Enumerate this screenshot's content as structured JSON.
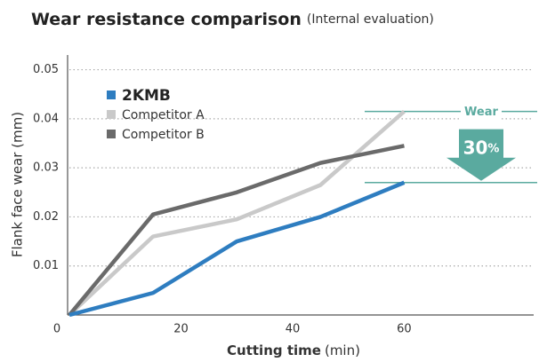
{
  "chart_data": {
    "type": "line",
    "title": "Wear resistance comparison",
    "subtitle": "(Internal evaluation)",
    "xlabel": "Cutting time",
    "xunit": "(min)",
    "ylabel": "Flank face wear (mm)",
    "x": [
      0,
      15,
      30,
      45,
      60
    ],
    "series": [
      {
        "name": "2KMB",
        "color": "#2e7dc0",
        "values": [
          0,
          0.0045,
          0.015,
          0.02,
          0.027
        ]
      },
      {
        "name": "Competitor A",
        "color": "#c9c9c9",
        "values": [
          0,
          0.016,
          0.0195,
          0.0265,
          0.0415
        ]
      },
      {
        "name": "Competitor B",
        "color": "#6a6a6a",
        "values": [
          0,
          0.0205,
          0.025,
          0.031,
          0.0345
        ]
      }
    ],
    "xlim": [
      0,
      83.2
    ],
    "xticks": [
      0,
      20,
      40,
      60
    ],
    "ylim": [
      0,
      0.053
    ],
    "yticks": [
      0.01,
      0.02,
      0.03,
      0.04,
      0.05
    ],
    "grid": true,
    "legend": "upper left",
    "annotation": {
      "label": "Wear",
      "value": "30",
      "unit": "%",
      "color": "#5aaa9f"
    }
  }
}
